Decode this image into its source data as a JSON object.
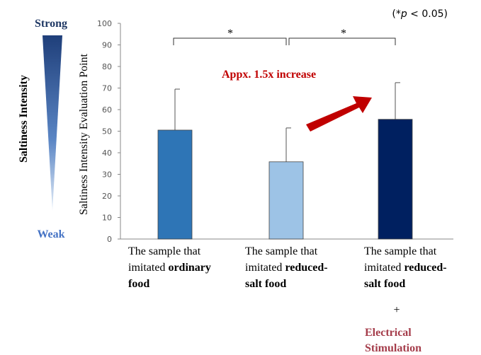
{
  "chart_data": {
    "type": "bar",
    "y_label": "Saltiness Intensity Evaluation Point",
    "scale_label": "Saltiness Intensity",
    "scale_top": "Strong",
    "scale_bottom": "Weak",
    "note": [
      {
        "text": "(*"
      },
      {
        "text": "p",
        "italic": true
      },
      {
        "text": " < 0.05)"
      }
    ],
    "annotation": "Appx. 1.5x increase",
    "significance": [
      "*",
      "*"
    ],
    "categories": [
      [
        [
          {
            "text": "The sample that"
          }
        ],
        [
          {
            "text": "imitated "
          },
          {
            "text": "ordinary",
            "bold": true
          }
        ],
        [
          {
            "text": "food",
            "bold": true
          }
        ]
      ],
      [
        [
          {
            "text": "The sample that"
          }
        ],
        [
          {
            "text": "imitated "
          },
          {
            "text": "reduced-",
            "bold": true
          }
        ],
        [
          {
            "text": "salt food",
            "bold": true
          }
        ]
      ],
      [
        [
          {
            "text": "The sample that"
          }
        ],
        [
          {
            "text": "imitated "
          },
          {
            "text": "reduced-",
            "bold": true
          }
        ],
        [
          {
            "text": "salt food",
            "bold": true
          }
        ]
      ]
    ],
    "extra_label": {
      "plus": "+",
      "lines": [
        "Electrical",
        "Stimulation"
      ]
    },
    "values": [
      50.5,
      35.8,
      55.5
    ],
    "errors": [
      19,
      15.7,
      17
    ],
    "colors": [
      "#2e75b6",
      "#9dc3e6",
      "#002060"
    ],
    "ylim": [
      0,
      100
    ],
    "yticks": [
      0,
      10,
      20,
      30,
      40,
      50,
      60,
      70,
      80,
      90,
      100
    ]
  }
}
